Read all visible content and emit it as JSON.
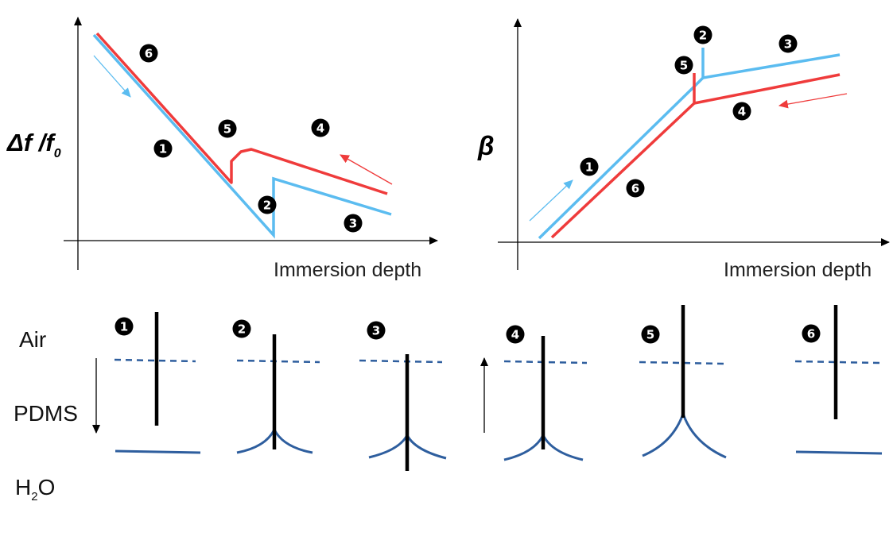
{
  "left_plot": {
    "ylabel_main": "Δf /f",
    "ylabel_sub": "0",
    "xlabel": "Immersion depth"
  },
  "right_plot": {
    "ylabel": "β",
    "xlabel": "Immersion depth"
  },
  "layers": {
    "air": "Air",
    "pdms": "PDMS",
    "h2o_main": "H",
    "h2o_sub": "2",
    "h2o_tail": "O"
  },
  "steps": [
    "1",
    "2",
    "3",
    "4",
    "5",
    "6"
  ],
  "colors": {
    "immersion": "#5bbcf0",
    "withdrawal": "#ef3b3b",
    "interface": "#2e5e9e",
    "probe": "#000000"
  }
}
